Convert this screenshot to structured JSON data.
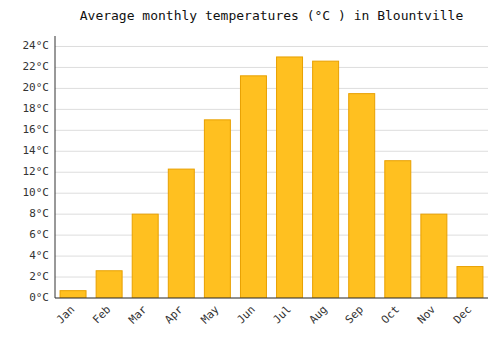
{
  "chart_data": {
    "type": "bar",
    "title": "Average monthly temperatures (°C ) in Blountville",
    "categories": [
      "Jan",
      "Feb",
      "Mar",
      "Apr",
      "May",
      "Jun",
      "Jul",
      "Aug",
      "Sep",
      "Oct",
      "Nov",
      "Dec"
    ],
    "values": [
      0.7,
      2.6,
      8.0,
      12.3,
      17.0,
      21.2,
      23.0,
      22.6,
      19.5,
      13.1,
      8.0,
      3.0
    ],
    "color": "#FFC020",
    "ylim": [
      0,
      25
    ],
    "yticks": [
      {
        "value": 0,
        "label": "0°C"
      },
      {
        "value": 2,
        "label": "2°C"
      },
      {
        "value": 4,
        "label": "4°C"
      },
      {
        "value": 6,
        "label": "6°C"
      },
      {
        "value": 8,
        "label": "8°C"
      },
      {
        "value": 10,
        "label": "10°C"
      },
      {
        "value": 12,
        "label": "12°C"
      },
      {
        "value": 14,
        "label": "14°C"
      },
      {
        "value": 16,
        "label": "16°C"
      },
      {
        "value": 18,
        "label": "18°C"
      },
      {
        "value": 20,
        "label": "20°C"
      },
      {
        "value": 22,
        "label": "22°C"
      },
      {
        "value": 24,
        "label": "24°C"
      }
    ],
    "grid": true
  }
}
